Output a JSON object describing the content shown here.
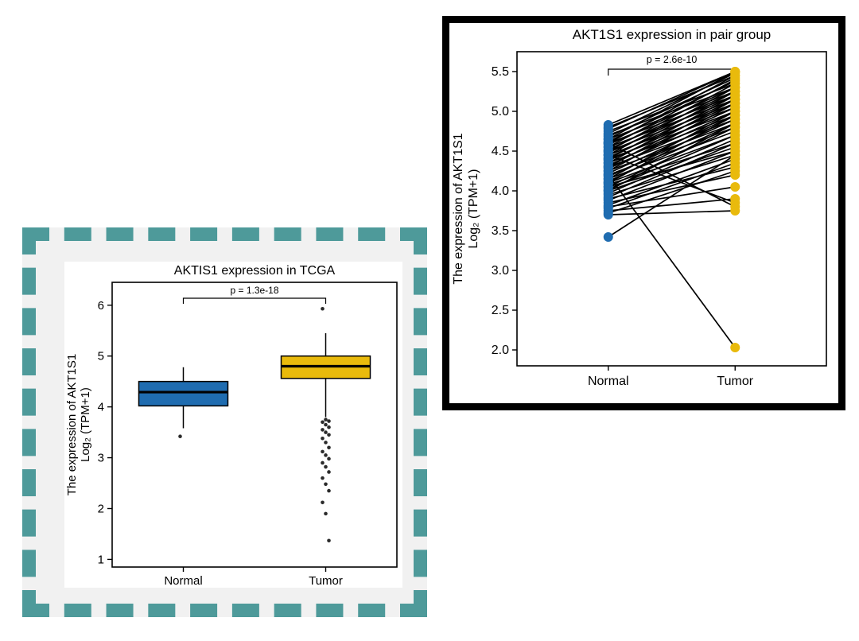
{
  "colors": {
    "normal_blue": "#1f6cb0",
    "tumor_gold": "#e9ba0c",
    "frame_teal": "#4e9a9a",
    "frame_black": "#000000",
    "figure_bg_gray": "#f1f1f1"
  },
  "chart_data": [
    {
      "id": "tcga_boxplot",
      "type": "boxplot",
      "title": "AKTIS1 expression in TCGA",
      "p_value_label": "p = 1.3e-18",
      "ylabel_line1": "The expression of AKT1S1",
      "ylabel_line2": "Log₂ (TPM+1)",
      "categories": [
        "Normal",
        "Tumor"
      ],
      "yticks": [
        1,
        2,
        3,
        4,
        5,
        6
      ],
      "ylim": [
        0.85,
        6.45
      ],
      "grid": false,
      "series": [
        {
          "name": "Normal",
          "color": "#1f6cb0",
          "q1": 4.02,
          "median": 4.29,
          "q3": 4.5,
          "whisker_low": 3.58,
          "whisker_high": 4.78,
          "outliers": [
            3.42
          ]
        },
        {
          "name": "Tumor",
          "color": "#e9ba0c",
          "q1": 4.56,
          "median": 4.8,
          "q3": 5.0,
          "whisker_low": 3.8,
          "whisker_high": 5.45,
          "outliers": [
            5.93,
            3.75,
            3.72,
            3.7,
            3.65,
            3.6,
            3.55,
            3.5,
            3.45,
            3.38,
            3.3,
            3.2,
            3.12,
            3.05,
            2.98,
            2.9,
            2.82,
            2.72,
            2.6,
            2.48,
            2.35,
            2.12,
            1.9,
            1.37
          ]
        }
      ]
    },
    {
      "id": "pair_plot",
      "type": "paired-scatter",
      "title": "AKT1S1 expression in pair group",
      "p_value_label": "p = 2.6e-10",
      "ylabel_line1": "The expression of AKT1S1",
      "ylabel_line2": "Log₂ (TPM+1)",
      "categories": [
        "Normal",
        "Tumor"
      ],
      "ytick_labels": [
        "2.0",
        "2.5",
        "3.0",
        "3.5",
        "4.0",
        "4.5",
        "5.0",
        "5.5"
      ],
      "ylim": [
        1.8,
        5.75
      ],
      "grid": false,
      "groups": [
        {
          "name": "Normal",
          "color": "#1f6cb0"
        },
        {
          "name": "Tumor",
          "color": "#e9ba0c"
        }
      ],
      "pairs": [
        [
          4.83,
          5.5
        ],
        [
          4.8,
          5.45
        ],
        [
          4.78,
          5.5
        ],
        [
          4.75,
          5.35
        ],
        [
          4.72,
          5.48
        ],
        [
          4.7,
          5.3
        ],
        [
          4.68,
          5.42
        ],
        [
          4.65,
          5.25
        ],
        [
          4.65,
          5.5
        ],
        [
          4.62,
          5.38
        ],
        [
          4.6,
          5.2
        ],
        [
          4.6,
          5.45
        ],
        [
          4.58,
          5.3
        ],
        [
          4.55,
          5.15
        ],
        [
          4.55,
          5.4
        ],
        [
          4.52,
          5.25
        ],
        [
          4.5,
          5.1
        ],
        [
          4.5,
          5.35
        ],
        [
          4.48,
          5.2
        ],
        [
          4.45,
          5.05
        ],
        [
          4.45,
          5.3
        ],
        [
          4.42,
          5.15
        ],
        [
          4.4,
          5.0
        ],
        [
          4.4,
          5.25
        ],
        [
          4.38,
          5.1
        ],
        [
          4.35,
          4.95
        ],
        [
          4.35,
          5.2
        ],
        [
          4.32,
          5.05
        ],
        [
          4.3,
          4.9
        ],
        [
          4.3,
          5.15
        ],
        [
          4.28,
          5.0
        ],
        [
          4.25,
          4.85
        ],
        [
          4.25,
          5.1
        ],
        [
          4.22,
          4.95
        ],
        [
          4.2,
          4.8
        ],
        [
          4.2,
          2.03
        ],
        [
          4.18,
          4.9
        ],
        [
          4.15,
          4.75
        ],
        [
          4.15,
          5.0
        ],
        [
          4.12,
          4.85
        ],
        [
          4.1,
          4.7
        ],
        [
          4.1,
          4.95
        ],
        [
          4.08,
          4.6
        ],
        [
          4.05,
          4.8
        ],
        [
          4.05,
          4.5
        ],
        [
          4.02,
          4.7
        ],
        [
          4.0,
          4.55
        ],
        [
          4.0,
          4.85
        ],
        [
          3.97,
          4.65
        ],
        [
          3.95,
          4.45
        ],
        [
          3.92,
          4.6
        ],
        [
          3.9,
          4.3
        ],
        [
          3.88,
          4.5
        ],
        [
          3.85,
          4.2
        ],
        [
          3.82,
          4.4
        ],
        [
          3.8,
          4.05
        ],
        [
          3.78,
          4.35
        ],
        [
          3.75,
          3.9
        ],
        [
          3.72,
          4.25
        ],
        [
          3.7,
          3.75
        ],
        [
          4.6,
          3.8
        ],
        [
          4.45,
          3.85
        ],
        [
          3.42,
          4.45
        ]
      ]
    }
  ]
}
